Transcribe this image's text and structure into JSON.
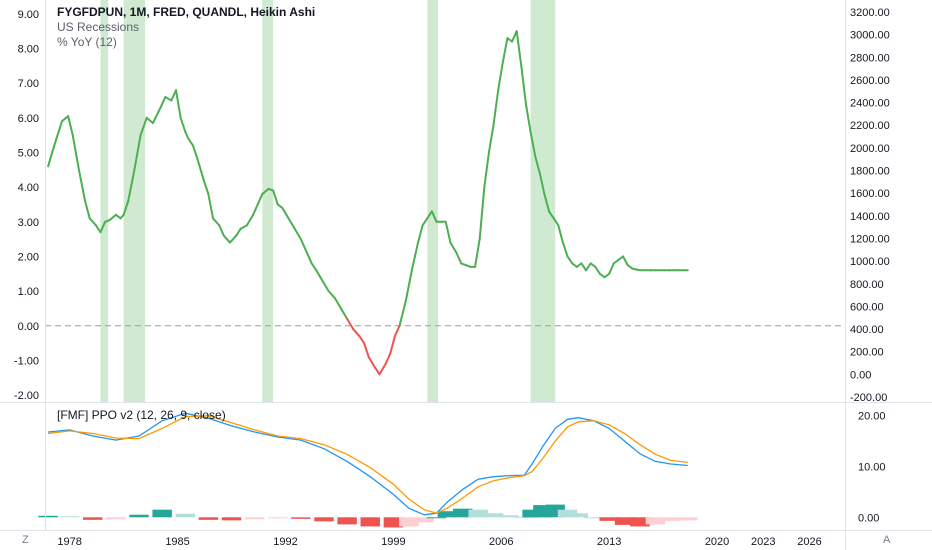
{
  "legend": {
    "title": "FYGFDPUN, 1M, FRED, QUANDL, Heikin Ashi",
    "line2": "US Recessions",
    "line3": "% YoY (12)",
    "ppo": "[FMF] PPO v2 (12, 26, 9, close)"
  },
  "corner": {
    "left": "Z",
    "right": "A"
  },
  "colors": {
    "positive": "#4caf50",
    "negative": "#ef5350",
    "recession": "#c8e6c9",
    "ppo_line": "#2196f3",
    "signal_line": "#ff9800",
    "hist_pos_strong": "#26a69a",
    "hist_pos_weak": "#b2dfdb",
    "hist_neg_strong": "#ef5350",
    "hist_neg_weak": "#ffcdd2",
    "zero_line": "#9e9e9e"
  },
  "chart_data": [
    {
      "type": "line",
      "title": "FYGFDPUN, 1M, FRED, QUANDL, Heikin Ashi",
      "series": [
        {
          "name": "% YoY (12)",
          "x": [
            1976.6,
            1977.0,
            1977.5,
            1977.9,
            1978.2,
            1978.6,
            1979.0,
            1979.3,
            1979.7,
            1980.0,
            1980.3,
            1980.6,
            1981.0,
            1981.3,
            1981.5,
            1981.8,
            1982.2,
            1982.6,
            1983.0,
            1983.4,
            1983.9,
            1984.2,
            1984.6,
            1984.9,
            1985.2,
            1985.5,
            1985.7,
            1986.0,
            1986.3,
            1986.7,
            1987.0,
            1987.3,
            1987.7,
            1988.0,
            1988.4,
            1988.8,
            1989.1,
            1989.5,
            1989.9,
            1990.2,
            1990.5,
            1990.9,
            1991.2,
            1991.5,
            1991.8,
            1992.2,
            1992.6,
            1993.0,
            1993.3,
            1993.7,
            1994.0,
            1994.4,
            1994.8,
            1995.2,
            1995.6,
            1996.0,
            1996.4,
            1996.8,
            1997.1,
            1997.4,
            1997.8,
            1998.1,
            1998.5,
            1998.8,
            1999.1,
            1999.4,
            1999.8,
            2000.2,
            2000.6,
            2000.9,
            2001.2,
            2001.5,
            2001.8,
            2002.1,
            2002.4,
            2002.7,
            2003.1,
            2003.4,
            2003.7,
            2004.0,
            2004.3,
            2004.6,
            2004.9,
            2005.2,
            2005.5,
            2005.8,
            2006.1,
            2006.4,
            2006.7,
            2007.0,
            2007.3,
            2007.6,
            2007.9,
            2008.2,
            2008.5,
            2008.8,
            2009.1,
            2009.4,
            2009.7,
            2010.0,
            2010.3,
            2010.6,
            2010.9,
            2011.2,
            2011.5,
            2011.8,
            2012.1,
            2012.4,
            2012.7,
            2013.0,
            2013.3,
            2013.6,
            2013.9,
            2014.2,
            2014.5,
            2014.8,
            2015.1,
            2015.4,
            2015.7,
            2016.0,
            2016.3,
            2016.6,
            2016.9,
            2017.2,
            2017.5,
            2017.8,
            2018.1
          ],
          "values": [
            4.6,
            5.2,
            5.9,
            6.05,
            5.5,
            4.5,
            3.6,
            3.1,
            2.9,
            2.7,
            3.0,
            3.05,
            3.2,
            3.1,
            3.2,
            3.6,
            4.5,
            5.5,
            6.0,
            5.85,
            6.3,
            6.6,
            6.5,
            6.8,
            6.0,
            5.6,
            5.4,
            5.2,
            4.8,
            4.2,
            3.8,
            3.1,
            2.9,
            2.6,
            2.4,
            2.6,
            2.8,
            2.9,
            3.2,
            3.5,
            3.8,
            3.95,
            3.9,
            3.5,
            3.4,
            3.1,
            2.8,
            2.5,
            2.2,
            1.8,
            1.6,
            1.3,
            1.0,
            0.8,
            0.5,
            0.2,
            -0.1,
            -0.3,
            -0.5,
            -0.9,
            -1.2,
            -1.4,
            -1.1,
            -0.8,
            -0.3,
            0.0,
            0.7,
            1.6,
            2.4,
            2.9,
            3.1,
            3.3,
            3.0,
            3.0,
            3.0,
            2.4,
            2.1,
            1.8,
            1.75,
            1.7,
            1.7,
            2.5,
            4.0,
            5.0,
            5.8,
            6.8,
            7.6,
            8.3,
            8.2,
            8.5,
            7.5,
            6.4,
            5.6,
            4.9,
            4.4,
            3.8,
            3.3,
            3.1,
            2.9,
            2.4,
            2.0,
            1.8,
            1.7,
            1.8,
            1.6,
            1.8,
            1.7,
            1.5,
            1.4,
            1.5,
            1.8,
            1.9,
            2.0,
            1.75,
            1.65,
            1.62,
            1.6,
            1.6,
            1.6,
            1.6,
            1.6,
            1.6,
            1.6,
            1.6,
            1.6,
            1.6,
            1.6
          ]
        }
      ],
      "recessions": [
        [
          1980.0,
          1980.5
        ],
        [
          1981.5,
          1982.9
        ],
        [
          1990.5,
          1991.2
        ],
        [
          2001.2,
          2001.9
        ],
        [
          2007.9,
          2009.5
        ]
      ],
      "xlim": [
        1976.4,
        2028.3
      ],
      "ylim": [
        -2.2,
        9.4
      ],
      "y_ticks": [
        "9.00",
        "8.00",
        "7.00",
        "6.00",
        "5.00",
        "4.00",
        "3.00",
        "2.00",
        "1.00",
        "0.00",
        "-1.00",
        "-2.00"
      ],
      "y2_ticks": [
        "3200.00",
        "3000.00",
        "2800.00",
        "2600.00",
        "2400.00",
        "2200.00",
        "2000.00",
        "1800.00",
        "1600.00",
        "1400.00",
        "1200.00",
        "1000.00",
        "800.00",
        "600.00",
        "400.00",
        "200.00",
        "0.00",
        "-200.00"
      ],
      "x_ticks": [
        "1978",
        "1985",
        "1992",
        "1999",
        "2006",
        "2013",
        "2020",
        "2023",
        "2026"
      ],
      "grid": false,
      "dashed_zero_line": true
    },
    {
      "type": "line",
      "title": "[FMF] PPO v2 (12, 26, 9, close)",
      "x": [
        1976.6,
        1978.0,
        1979.5,
        1981.0,
        1982.5,
        1984.0,
        1985.5,
        1987.0,
        1988.5,
        1990.0,
        1991.5,
        1993.0,
        1994.5,
        1996.0,
        1997.5,
        1999.0,
        2000.0,
        2001.0,
        2001.8,
        2002.5,
        2003.5,
        2004.5,
        2005.5,
        2006.5,
        2007.5,
        2008.0,
        2008.7,
        2009.5,
        2010.3,
        2011.0,
        2012.0,
        2013.0,
        2014.0,
        2015.0,
        2016.0,
        2017.0,
        2018.1
      ],
      "series": [
        {
          "name": "PPO",
          "values": [
            16.8,
            17.2,
            16.0,
            15.2,
            16.0,
            19.0,
            20.5,
            19.5,
            18.0,
            16.8,
            15.8,
            15.2,
            13.5,
            11.0,
            8.0,
            4.5,
            1.8,
            0.5,
            0.8,
            3.0,
            5.5,
            7.5,
            8.0,
            8.2,
            8.3,
            10.5,
            14.0,
            17.5,
            19.3,
            19.6,
            19.0,
            17.5,
            15.0,
            12.5,
            11.0,
            10.5,
            10.2
          ]
        },
        {
          "name": "Signal",
          "values": [
            16.5,
            17.0,
            16.5,
            15.6,
            15.5,
            17.5,
            19.8,
            20.0,
            18.6,
            17.2,
            16.0,
            15.5,
            14.3,
            12.4,
            9.8,
            6.5,
            3.6,
            1.5,
            0.8,
            1.8,
            3.8,
            6.0,
            7.2,
            7.8,
            8.2,
            9.0,
            11.6,
            15.0,
            17.8,
            18.8,
            19.0,
            18.2,
            16.5,
            14.3,
            12.4,
            11.2,
            10.8
          ]
        }
      ],
      "histogram": [
        0.3,
        0.2,
        -0.5,
        -0.4,
        0.5,
        1.5,
        0.7,
        -0.5,
        -0.6,
        -0.4,
        -0.2,
        -0.3,
        -0.8,
        -1.4,
        -1.8,
        -2.0,
        -1.8,
        -1.0,
        0.0,
        1.2,
        1.7,
        1.5,
        0.8,
        0.4,
        0.1,
        1.5,
        2.4,
        2.5,
        1.5,
        0.8,
        0.0,
        -0.7,
        -1.5,
        -1.8,
        -1.4,
        -0.7,
        -0.6
      ],
      "ylim": [
        -2.5,
        22.5
      ],
      "y_ticks": [
        "20.00",
        "10.00",
        "0.00"
      ],
      "grid": false
    }
  ]
}
